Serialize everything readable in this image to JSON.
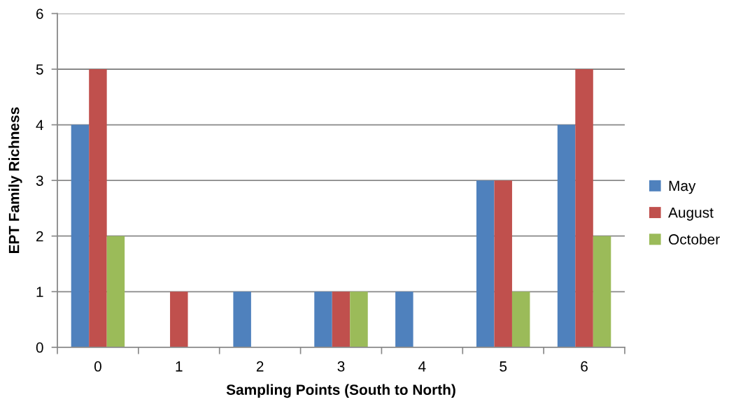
{
  "chart_data": {
    "type": "bar",
    "xlabel": "Sampling Points (South to North)",
    "ylabel": "EPT Family Richness",
    "categories": [
      "0",
      "1",
      "2",
      "3",
      "4",
      "5",
      "6"
    ],
    "series": [
      {
        "name": "May",
        "color": "#4f81bd",
        "values": [
          4,
          0,
          1,
          1,
          1,
          3,
          4
        ]
      },
      {
        "name": "August",
        "color": "#c0504d",
        "values": [
          5,
          1,
          0,
          1,
          0,
          3,
          5
        ]
      },
      {
        "name": "October",
        "color": "#9bbb59",
        "values": [
          2,
          0,
          0,
          1,
          0,
          1,
          2
        ]
      }
    ],
    "ylim": [
      0,
      6
    ],
    "yticks": [
      0,
      1,
      2,
      3,
      4,
      5,
      6
    ],
    "grid": "y",
    "legend": "right"
  }
}
